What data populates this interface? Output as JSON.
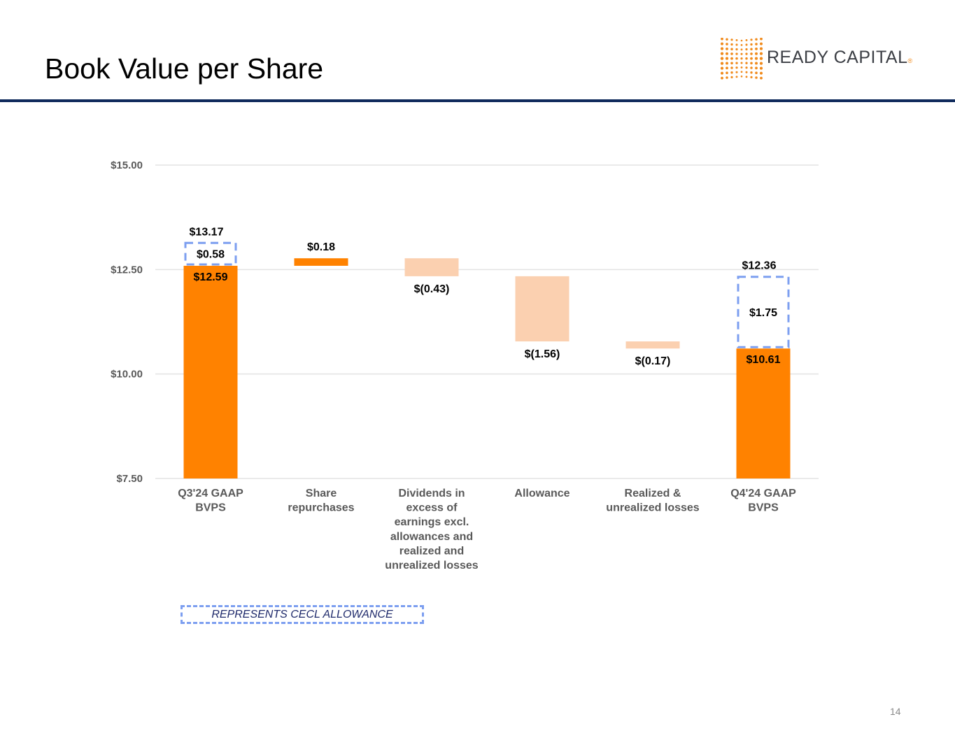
{
  "header": {
    "title": "Book Value per Share",
    "logo_text": "READY CAPITAL",
    "logo_mark": "®",
    "brand_color": "#f08a1c",
    "rule_color": "#0f2a5c"
  },
  "footer": {
    "page_number": "14"
  },
  "legend": {
    "label": "REPRESENTS CECL ALLOWANCE",
    "border_color": "#7d9ff0"
  },
  "chart_data": {
    "type": "bar",
    "subtype": "waterfall",
    "title": "Book Value per Share",
    "xlabel": "",
    "ylabel": "",
    "ylim": [
      7.5,
      15.0
    ],
    "yticks": [
      7.5,
      10.0,
      12.5,
      15.0
    ],
    "ytick_labels": [
      "$7.50",
      "$10.00",
      "$12.50",
      "$15.00"
    ],
    "grid": true,
    "categories": [
      [
        "Q3'24 GAAP",
        "BVPS"
      ],
      [
        "Share",
        "repurchases"
      ],
      [
        "Dividends in",
        "excess of",
        "earnings excl.",
        "allowances and",
        "realized and",
        "unrealized losses"
      ],
      [
        "Allowance"
      ],
      [
        "Realized &",
        "unrealized losses"
      ],
      [
        "Q4'24 GAAP",
        "BVPS"
      ]
    ],
    "bars": [
      {
        "kind": "total",
        "start": 7.5,
        "end": 12.59,
        "label": "$12.59",
        "color": "#ff8200"
      },
      {
        "kind": "increase",
        "start": 12.59,
        "end": 12.77,
        "label": "$0.18",
        "color": "#ff8200"
      },
      {
        "kind": "decrease",
        "start": 12.77,
        "end": 12.34,
        "label": "$(0.43)",
        "color": "#fbd0b0"
      },
      {
        "kind": "decrease",
        "start": 12.34,
        "end": 10.78,
        "label": "$(1.56)",
        "color": "#fbd0b0"
      },
      {
        "kind": "decrease",
        "start": 10.78,
        "end": 10.61,
        "label": "$(0.17)",
        "color": "#fbd0b0"
      },
      {
        "kind": "total",
        "start": 7.5,
        "end": 10.61,
        "label": "$10.61",
        "color": "#ff8200"
      }
    ],
    "cecl_allowance": [
      {
        "category_index": 0,
        "start": 12.59,
        "end": 13.17,
        "label": "$0.58",
        "total_label": "$13.17"
      },
      {
        "category_index": 5,
        "start": 10.61,
        "end": 12.36,
        "label": "$1.75",
        "total_label": "$12.36"
      }
    ],
    "legend": "bottom-left"
  }
}
